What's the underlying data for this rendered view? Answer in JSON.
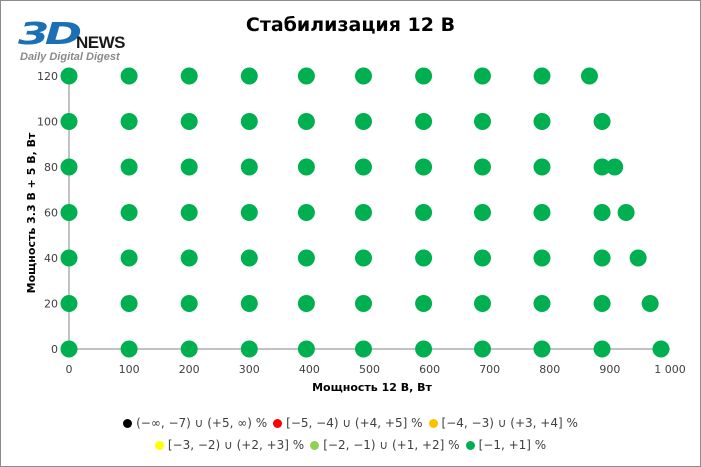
{
  "logo": {
    "brand": "3D",
    "news": "NEWS",
    "tagline": "Daily Digital Digest"
  },
  "chart_data": {
    "type": "scatter",
    "title": "Стабилизация 12 В",
    "xlabel": "Мощность  12 В, Вт",
    "ylabel": "Мощность  3.3 В + 5 В, Вт",
    "xlim": [
      0,
      1000
    ],
    "ylim": [
      0,
      120
    ],
    "xticks": [
      "0",
      "100",
      "200",
      "300",
      "400",
      "500",
      "600",
      "700",
      "800",
      "900",
      "1 000"
    ],
    "yticks": [
      "0",
      "20",
      "40",
      "60",
      "80",
      "100",
      "120"
    ],
    "grid": false,
    "legend_position": "bottom",
    "legend": [
      {
        "label": "(−∞, −7) ∪ (+5, ∞) %",
        "color": "#000000"
      },
      {
        "label": "[−5, −4) ∪ (+4, +5] %",
        "color": "#ff0000"
      },
      {
        "label": "[−4, −3) ∪ (+3, +4] %",
        "color": "#ffc000"
      },
      {
        "label": "[−3, −2) ∪ (+2, +3] %",
        "color": "#ffff00"
      },
      {
        "label": "[−2, −1) ∪ (+1, +2] %",
        "color": "#92d050"
      },
      {
        "label": "[−1, +1] %",
        "color": "#00b050"
      }
    ],
    "series": [
      {
        "name": "[−1, +1] %",
        "color": "#00b050",
        "points": [
          [
            0,
            0
          ],
          [
            100,
            0
          ],
          [
            200,
            0
          ],
          [
            300,
            0
          ],
          [
            395,
            0
          ],
          [
            490,
            0
          ],
          [
            590,
            0
          ],
          [
            688,
            0
          ],
          [
            787,
            0
          ],
          [
            887,
            0
          ],
          [
            985,
            0
          ],
          [
            0,
            20
          ],
          [
            100,
            20
          ],
          [
            200,
            20
          ],
          [
            300,
            20
          ],
          [
            395,
            20
          ],
          [
            490,
            20
          ],
          [
            590,
            20
          ],
          [
            688,
            20
          ],
          [
            787,
            20
          ],
          [
            887,
            20
          ],
          [
            967,
            20
          ],
          [
            0,
            40
          ],
          [
            100,
            40
          ],
          [
            200,
            40
          ],
          [
            300,
            40
          ],
          [
            395,
            40
          ],
          [
            490,
            40
          ],
          [
            590,
            40
          ],
          [
            688,
            40
          ],
          [
            787,
            40
          ],
          [
            887,
            40
          ],
          [
            947,
            40
          ],
          [
            0,
            60
          ],
          [
            100,
            60
          ],
          [
            200,
            60
          ],
          [
            300,
            60
          ],
          [
            395,
            60
          ],
          [
            490,
            60
          ],
          [
            590,
            60
          ],
          [
            688,
            60
          ],
          [
            787,
            60
          ],
          [
            887,
            60
          ],
          [
            927,
            60
          ],
          [
            0,
            80
          ],
          [
            100,
            80
          ],
          [
            200,
            80
          ],
          [
            300,
            80
          ],
          [
            395,
            80
          ],
          [
            490,
            80
          ],
          [
            590,
            80
          ],
          [
            688,
            80
          ],
          [
            787,
            80
          ],
          [
            887,
            80
          ],
          [
            908,
            80
          ],
          [
            0,
            100
          ],
          [
            100,
            100
          ],
          [
            200,
            100
          ],
          [
            300,
            100
          ],
          [
            395,
            100
          ],
          [
            490,
            100
          ],
          [
            590,
            100
          ],
          [
            688,
            100
          ],
          [
            787,
            100
          ],
          [
            887,
            100
          ],
          [
            0,
            120
          ],
          [
            100,
            120
          ],
          [
            200,
            120
          ],
          [
            300,
            120
          ],
          [
            395,
            120
          ],
          [
            490,
            120
          ],
          [
            590,
            120
          ],
          [
            688,
            120
          ],
          [
            787,
            120
          ],
          [
            866,
            120
          ]
        ]
      }
    ]
  }
}
